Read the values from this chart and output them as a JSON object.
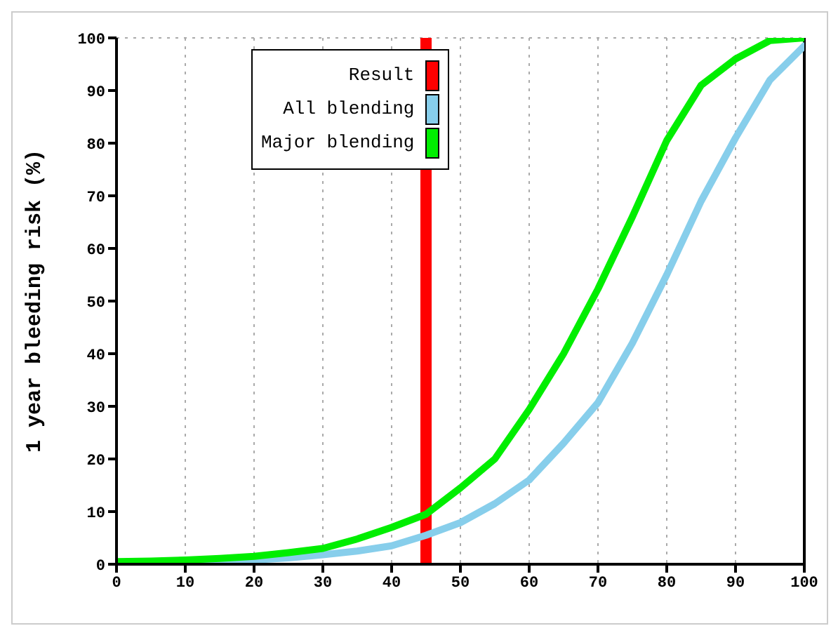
{
  "chart_data": {
    "type": "line",
    "ylabel": "1 year bleeding risk (%)",
    "x": [
      0,
      5,
      10,
      15,
      20,
      25,
      30,
      35,
      40,
      45,
      50,
      55,
      60,
      65,
      70,
      75,
      80,
      85,
      90,
      95,
      100
    ],
    "series": [
      {
        "name": "All blending",
        "color": "#87ceeb",
        "values": [
          null,
          null,
          0.3,
          0.5,
          0.8,
          1.2,
          1.8,
          2.5,
          3.5,
          5.5,
          7.9,
          11.5,
          16,
          23,
          30.7,
          42,
          55,
          69,
          81,
          92,
          98.5
        ]
      },
      {
        "name": "Major blending",
        "color": "#00ee00",
        "values": [
          0.5,
          0.6,
          0.8,
          1.1,
          1.5,
          2.2,
          3,
          4.8,
          7,
          9.5,
          14.5,
          20,
          29.4,
          40,
          52.3,
          66,
          80.5,
          91,
          96,
          99.5,
          100
        ]
      }
    ],
    "ref_lines": [
      {
        "axis": "x",
        "value": 45,
        "label": "Result",
        "color": "#ff0000"
      }
    ],
    "xlim": [
      0,
      100
    ],
    "xticks": [
      0,
      10,
      20,
      30,
      40,
      50,
      60,
      70,
      80,
      90,
      100
    ],
    "ylim": [
      0,
      100
    ],
    "yticks": [
      0,
      10,
      20,
      30,
      40,
      50,
      60,
      70,
      80,
      90,
      100
    ],
    "grid": true,
    "legend": "top",
    "marker": "none",
    "line_style": "solid"
  }
}
